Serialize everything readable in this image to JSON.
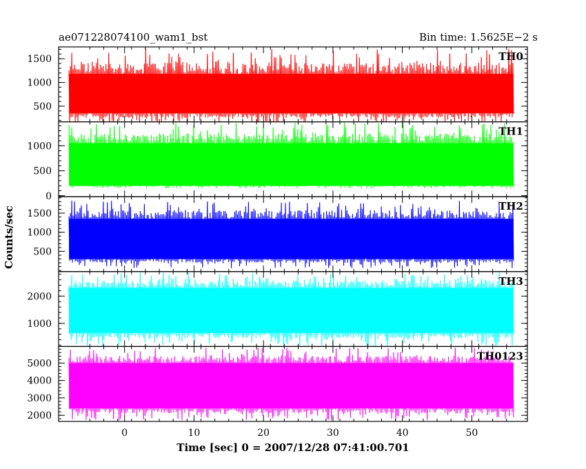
{
  "chart_data": {
    "type": "line",
    "title_left": "ae071228074100_wam1_bst",
    "title_right": "Bin time: 1.5625E−2 s",
    "xlabel": "Time [sec] 0 = 2007/12/28 07:41:00.701",
    "ylabel": "Counts/sec",
    "xlim": [
      -9.5,
      58
    ],
    "x_ticks": [
      0,
      10,
      20,
      30,
      40,
      50
    ],
    "data_xrange": [
      -8,
      56
    ],
    "grid": false,
    "panels": [
      {
        "name": "TH0",
        "color": "#ff0000",
        "ylim": [
          170,
          1750
        ],
        "y_ticks": [
          500,
          1000,
          1500
        ],
        "baseline": 120,
        "peak": 1720,
        "typical_band": [
          350,
          1180
        ]
      },
      {
        "name": "TH1",
        "color": "#00ff00",
        "ylim": [
          -20,
          1480
        ],
        "y_ticks": [
          0,
          500,
          1000
        ],
        "baseline": 150,
        "peak": 1480,
        "typical_band": [
          200,
          1050
        ]
      },
      {
        "name": "TH2",
        "color": "#0000ff",
        "ylim": [
          -30,
          1930
        ],
        "y_ticks": [
          500,
          1000,
          1500
        ],
        "baseline": 60,
        "peak": 1850,
        "typical_band": [
          300,
          1350
        ]
      },
      {
        "name": "TH3",
        "color": "#00ffff",
        "ylim": [
          150,
          2900
        ],
        "y_ticks": [
          1000,
          2000
        ],
        "baseline": 150,
        "peak": 2900,
        "typical_band": [
          650,
          2300
        ]
      },
      {
        "name": "TH0123",
        "color": "#ff00ff",
        "ylim": [
          1650,
          5950
        ],
        "y_ticks": [
          2000,
          3000,
          4000,
          5000
        ],
        "baseline": 1700,
        "peak": 5900,
        "typical_band": [
          2400,
          5000
        ]
      }
    ]
  }
}
